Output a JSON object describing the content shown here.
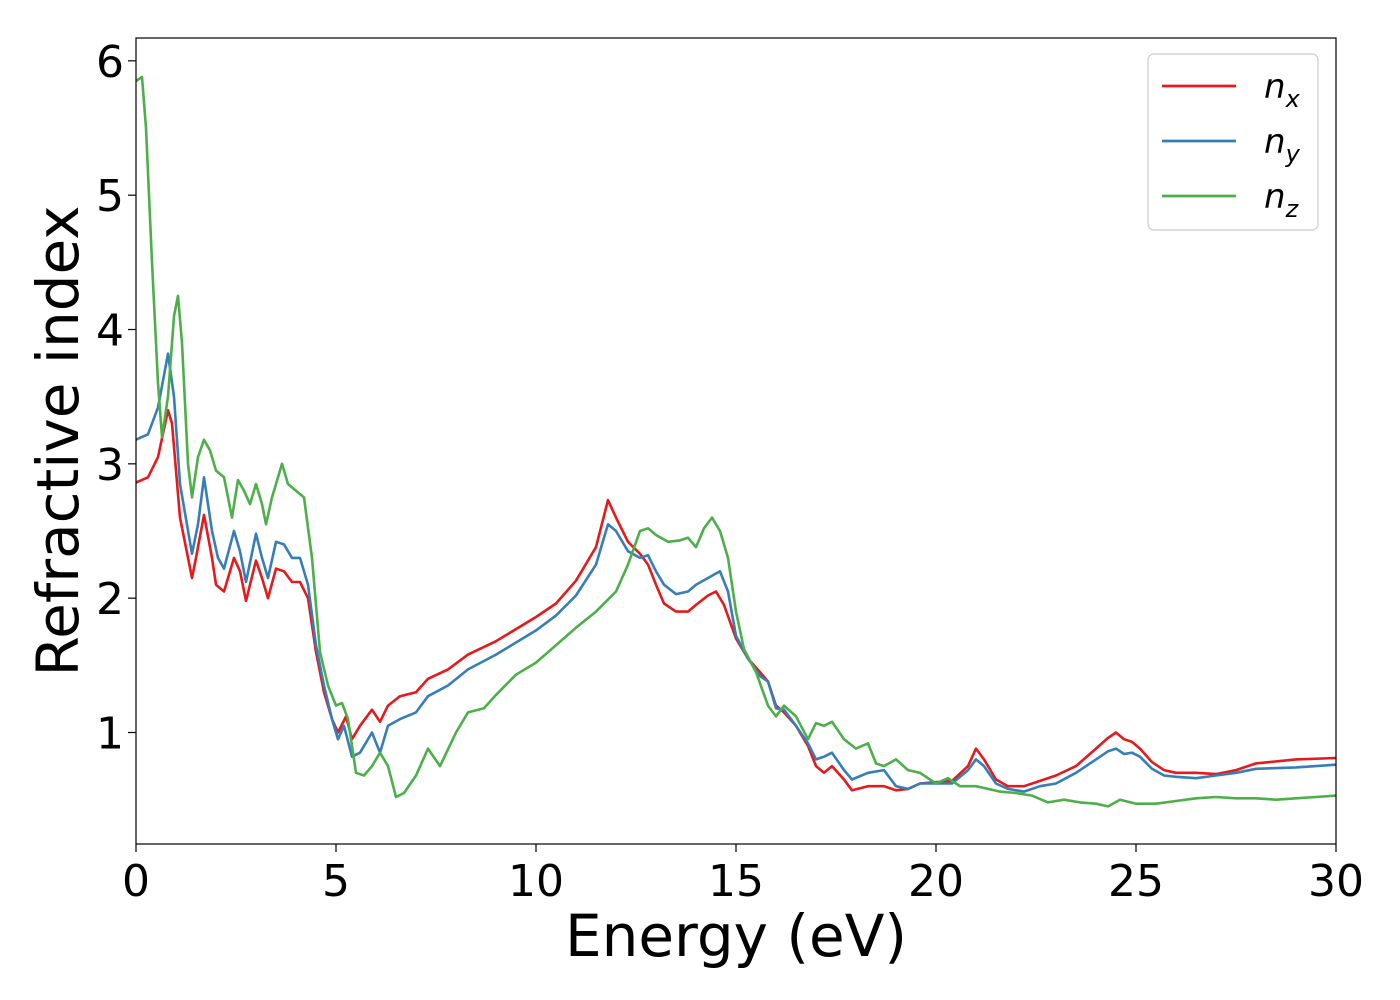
{
  "chart_data": {
    "type": "line",
    "xlabel": "Energy (eV)",
    "ylabel": "Refractive index",
    "xlim": [
      0,
      30
    ],
    "ylim": [
      0.17,
      6.17
    ],
    "xticks": [
      "0",
      "5",
      "10",
      "15",
      "20",
      "25",
      "30"
    ],
    "yticks": [
      "1",
      "2",
      "3",
      "4",
      "5",
      "6"
    ],
    "grid": false,
    "legend_position": "top-right",
    "series": [
      {
        "name": "n",
        "sub": "x",
        "color": "#e41a1c",
        "points": [
          [
            0,
            2.86
          ],
          [
            0.3,
            2.9
          ],
          [
            0.55,
            3.05
          ],
          [
            0.8,
            3.4
          ],
          [
            0.9,
            3.3
          ],
          [
            1.1,
            2.6
          ],
          [
            1.4,
            2.15
          ],
          [
            1.5,
            2.3
          ],
          [
            1.7,
            2.62
          ],
          [
            1.9,
            2.3
          ],
          [
            2.0,
            2.1
          ],
          [
            2.2,
            2.05
          ],
          [
            2.45,
            2.3
          ],
          [
            2.6,
            2.2
          ],
          [
            2.75,
            1.98
          ],
          [
            3.0,
            2.28
          ],
          [
            3.15,
            2.15
          ],
          [
            3.3,
            2.0
          ],
          [
            3.5,
            2.22
          ],
          [
            3.7,
            2.2
          ],
          [
            3.9,
            2.12
          ],
          [
            4.1,
            2.12
          ],
          [
            4.3,
            2.0
          ],
          [
            4.5,
            1.6
          ],
          [
            4.7,
            1.3
          ],
          [
            4.9,
            1.1
          ],
          [
            5.05,
            1.0
          ],
          [
            5.25,
            1.12
          ],
          [
            5.4,
            0.95
          ],
          [
            5.6,
            1.05
          ],
          [
            5.9,
            1.17
          ],
          [
            6.1,
            1.08
          ],
          [
            6.3,
            1.2
          ],
          [
            6.6,
            1.27
          ],
          [
            7.0,
            1.3
          ],
          [
            7.3,
            1.4
          ],
          [
            7.8,
            1.47
          ],
          [
            8.3,
            1.58
          ],
          [
            9.0,
            1.68
          ],
          [
            10.0,
            1.86
          ],
          [
            10.5,
            1.96
          ],
          [
            11.0,
            2.13
          ],
          [
            11.5,
            2.38
          ],
          [
            11.8,
            2.73
          ],
          [
            12.0,
            2.6
          ],
          [
            12.3,
            2.42
          ],
          [
            12.6,
            2.33
          ],
          [
            12.8,
            2.25
          ],
          [
            13.0,
            2.1
          ],
          [
            13.2,
            1.96
          ],
          [
            13.5,
            1.9
          ],
          [
            13.8,
            1.9
          ],
          [
            14.0,
            1.95
          ],
          [
            14.3,
            2.02
          ],
          [
            14.5,
            2.05
          ],
          [
            14.7,
            1.95
          ],
          [
            15.0,
            1.7
          ],
          [
            15.3,
            1.55
          ],
          [
            15.6,
            1.45
          ],
          [
            15.8,
            1.38
          ],
          [
            16.0,
            1.2
          ],
          [
            16.2,
            1.15
          ],
          [
            16.5,
            1.05
          ],
          [
            16.8,
            0.9
          ],
          [
            17.0,
            0.75
          ],
          [
            17.2,
            0.7
          ],
          [
            17.4,
            0.75
          ],
          [
            17.7,
            0.65
          ],
          [
            17.9,
            0.57
          ],
          [
            18.3,
            0.6
          ],
          [
            18.7,
            0.6
          ],
          [
            19.0,
            0.57
          ],
          [
            19.3,
            0.58
          ],
          [
            19.6,
            0.62
          ],
          [
            20.0,
            0.63
          ],
          [
            20.4,
            0.64
          ],
          [
            20.8,
            0.75
          ],
          [
            21.0,
            0.88
          ],
          [
            21.2,
            0.8
          ],
          [
            21.5,
            0.65
          ],
          [
            21.8,
            0.6
          ],
          [
            22.2,
            0.6
          ],
          [
            22.6,
            0.64
          ],
          [
            23.0,
            0.68
          ],
          [
            23.5,
            0.75
          ],
          [
            24.0,
            0.88
          ],
          [
            24.3,
            0.96
          ],
          [
            24.5,
            1.0
          ],
          [
            24.7,
            0.95
          ],
          [
            24.9,
            0.93
          ],
          [
            25.1,
            0.88
          ],
          [
            25.4,
            0.78
          ],
          [
            25.7,
            0.72
          ],
          [
            26.0,
            0.7
          ],
          [
            26.5,
            0.7
          ],
          [
            27.0,
            0.69
          ],
          [
            27.5,
            0.72
          ],
          [
            28.0,
            0.77
          ],
          [
            29.0,
            0.8
          ],
          [
            30.0,
            0.81
          ]
        ]
      },
      {
        "name": "n",
        "sub": "y",
        "color": "#377eb8",
        "points": [
          [
            0,
            3.18
          ],
          [
            0.3,
            3.22
          ],
          [
            0.55,
            3.42
          ],
          [
            0.8,
            3.82
          ],
          [
            0.95,
            3.5
          ],
          [
            1.1,
            2.85
          ],
          [
            1.4,
            2.33
          ],
          [
            1.55,
            2.55
          ],
          [
            1.7,
            2.9
          ],
          [
            1.9,
            2.5
          ],
          [
            2.05,
            2.3
          ],
          [
            2.2,
            2.22
          ],
          [
            2.45,
            2.5
          ],
          [
            2.6,
            2.35
          ],
          [
            2.75,
            2.12
          ],
          [
            3.0,
            2.48
          ],
          [
            3.15,
            2.3
          ],
          [
            3.3,
            2.15
          ],
          [
            3.5,
            2.42
          ],
          [
            3.7,
            2.4
          ],
          [
            3.9,
            2.3
          ],
          [
            4.1,
            2.3
          ],
          [
            4.3,
            2.1
          ],
          [
            4.5,
            1.65
          ],
          [
            4.7,
            1.35
          ],
          [
            4.9,
            1.1
          ],
          [
            5.05,
            0.95
          ],
          [
            5.2,
            1.05
          ],
          [
            5.4,
            0.82
          ],
          [
            5.6,
            0.85
          ],
          [
            5.9,
            1.0
          ],
          [
            6.1,
            0.85
          ],
          [
            6.3,
            1.05
          ],
          [
            6.6,
            1.1
          ],
          [
            7.0,
            1.15
          ],
          [
            7.3,
            1.27
          ],
          [
            7.8,
            1.35
          ],
          [
            8.3,
            1.47
          ],
          [
            9.0,
            1.58
          ],
          [
            10.0,
            1.76
          ],
          [
            10.5,
            1.87
          ],
          [
            11.0,
            2.02
          ],
          [
            11.5,
            2.25
          ],
          [
            11.8,
            2.55
          ],
          [
            12.0,
            2.5
          ],
          [
            12.3,
            2.35
          ],
          [
            12.6,
            2.3
          ],
          [
            12.8,
            2.32
          ],
          [
            13.0,
            2.2
          ],
          [
            13.2,
            2.1
          ],
          [
            13.5,
            2.03
          ],
          [
            13.8,
            2.05
          ],
          [
            14.0,
            2.1
          ],
          [
            14.3,
            2.15
          ],
          [
            14.6,
            2.2
          ],
          [
            14.8,
            2.05
          ],
          [
            15.0,
            1.72
          ],
          [
            15.3,
            1.55
          ],
          [
            15.6,
            1.42
          ],
          [
            15.8,
            1.38
          ],
          [
            16.0,
            1.18
          ],
          [
            16.2,
            1.17
          ],
          [
            16.5,
            1.05
          ],
          [
            16.8,
            0.92
          ],
          [
            17.0,
            0.8
          ],
          [
            17.2,
            0.82
          ],
          [
            17.4,
            0.85
          ],
          [
            17.7,
            0.72
          ],
          [
            17.9,
            0.65
          ],
          [
            18.3,
            0.7
          ],
          [
            18.7,
            0.72
          ],
          [
            19.0,
            0.6
          ],
          [
            19.3,
            0.58
          ],
          [
            19.6,
            0.62
          ],
          [
            20.0,
            0.62
          ],
          [
            20.4,
            0.62
          ],
          [
            20.8,
            0.72
          ],
          [
            21.0,
            0.8
          ],
          [
            21.2,
            0.75
          ],
          [
            21.5,
            0.62
          ],
          [
            21.8,
            0.58
          ],
          [
            22.2,
            0.56
          ],
          [
            22.6,
            0.6
          ],
          [
            23.0,
            0.62
          ],
          [
            23.5,
            0.7
          ],
          [
            24.0,
            0.8
          ],
          [
            24.3,
            0.86
          ],
          [
            24.5,
            0.88
          ],
          [
            24.7,
            0.84
          ],
          [
            24.9,
            0.85
          ],
          [
            25.1,
            0.82
          ],
          [
            25.4,
            0.73
          ],
          [
            25.7,
            0.68
          ],
          [
            26.0,
            0.67
          ],
          [
            26.5,
            0.66
          ],
          [
            27.0,
            0.68
          ],
          [
            27.5,
            0.7
          ],
          [
            28.0,
            0.73
          ],
          [
            29.0,
            0.74
          ],
          [
            30.0,
            0.76
          ]
        ]
      },
      {
        "name": "n",
        "sub": "z",
        "color": "#4daf4a",
        "points": [
          [
            0,
            5.85
          ],
          [
            0.15,
            5.88
          ],
          [
            0.25,
            5.5
          ],
          [
            0.4,
            4.5
          ],
          [
            0.55,
            3.6
          ],
          [
            0.65,
            3.2
          ],
          [
            0.8,
            3.5
          ],
          [
            0.95,
            4.1
          ],
          [
            1.05,
            4.25
          ],
          [
            1.15,
            3.9
          ],
          [
            1.3,
            3.0
          ],
          [
            1.4,
            2.75
          ],
          [
            1.55,
            3.05
          ],
          [
            1.7,
            3.18
          ],
          [
            1.85,
            3.1
          ],
          [
            2.0,
            2.95
          ],
          [
            2.2,
            2.9
          ],
          [
            2.4,
            2.6
          ],
          [
            2.55,
            2.88
          ],
          [
            2.7,
            2.8
          ],
          [
            2.85,
            2.7
          ],
          [
            3.0,
            2.85
          ],
          [
            3.15,
            2.7
          ],
          [
            3.25,
            2.55
          ],
          [
            3.4,
            2.75
          ],
          [
            3.5,
            2.85
          ],
          [
            3.65,
            3.0
          ],
          [
            3.8,
            2.85
          ],
          [
            4.0,
            2.8
          ],
          [
            4.2,
            2.75
          ],
          [
            4.4,
            2.3
          ],
          [
            4.6,
            1.6
          ],
          [
            4.8,
            1.35
          ],
          [
            5.0,
            1.2
          ],
          [
            5.15,
            1.22
          ],
          [
            5.3,
            1.1
          ],
          [
            5.5,
            0.7
          ],
          [
            5.7,
            0.68
          ],
          [
            5.9,
            0.75
          ],
          [
            6.1,
            0.85
          ],
          [
            6.3,
            0.75
          ],
          [
            6.5,
            0.52
          ],
          [
            6.7,
            0.55
          ],
          [
            7.0,
            0.68
          ],
          [
            7.3,
            0.88
          ],
          [
            7.6,
            0.75
          ],
          [
            8.0,
            1.0
          ],
          [
            8.3,
            1.15
          ],
          [
            8.7,
            1.18
          ],
          [
            9.0,
            1.28
          ],
          [
            9.5,
            1.43
          ],
          [
            10.0,
            1.52
          ],
          [
            10.5,
            1.65
          ],
          [
            11.0,
            1.78
          ],
          [
            11.5,
            1.9
          ],
          [
            12.0,
            2.05
          ],
          [
            12.3,
            2.25
          ],
          [
            12.6,
            2.5
          ],
          [
            12.8,
            2.52
          ],
          [
            13.0,
            2.47
          ],
          [
            13.3,
            2.42
          ],
          [
            13.6,
            2.43
          ],
          [
            13.8,
            2.45
          ],
          [
            14.0,
            2.38
          ],
          [
            14.2,
            2.52
          ],
          [
            14.4,
            2.6
          ],
          [
            14.6,
            2.5
          ],
          [
            14.8,
            2.3
          ],
          [
            15.0,
            1.9
          ],
          [
            15.2,
            1.62
          ],
          [
            15.5,
            1.45
          ],
          [
            15.8,
            1.2
          ],
          [
            16.0,
            1.12
          ],
          [
            16.2,
            1.2
          ],
          [
            16.5,
            1.12
          ],
          [
            16.8,
            0.95
          ],
          [
            17.0,
            1.07
          ],
          [
            17.2,
            1.05
          ],
          [
            17.4,
            1.08
          ],
          [
            17.7,
            0.95
          ],
          [
            18.0,
            0.88
          ],
          [
            18.3,
            0.92
          ],
          [
            18.5,
            0.77
          ],
          [
            18.7,
            0.75
          ],
          [
            19.0,
            0.8
          ],
          [
            19.3,
            0.72
          ],
          [
            19.6,
            0.7
          ],
          [
            20.0,
            0.62
          ],
          [
            20.3,
            0.66
          ],
          [
            20.6,
            0.6
          ],
          [
            21.0,
            0.6
          ],
          [
            21.3,
            0.58
          ],
          [
            21.6,
            0.56
          ],
          [
            22.0,
            0.55
          ],
          [
            22.4,
            0.53
          ],
          [
            22.8,
            0.48
          ],
          [
            23.2,
            0.5
          ],
          [
            23.6,
            0.48
          ],
          [
            24.0,
            0.47
          ],
          [
            24.3,
            0.45
          ],
          [
            24.6,
            0.5
          ],
          [
            25.0,
            0.47
          ],
          [
            25.5,
            0.47
          ],
          [
            26.0,
            0.49
          ],
          [
            26.5,
            0.51
          ],
          [
            27.0,
            0.52
          ],
          [
            27.5,
            0.51
          ],
          [
            28.0,
            0.51
          ],
          [
            28.5,
            0.5
          ],
          [
            29.0,
            0.51
          ],
          [
            29.5,
            0.52
          ],
          [
            30.0,
            0.53
          ]
        ]
      }
    ]
  }
}
